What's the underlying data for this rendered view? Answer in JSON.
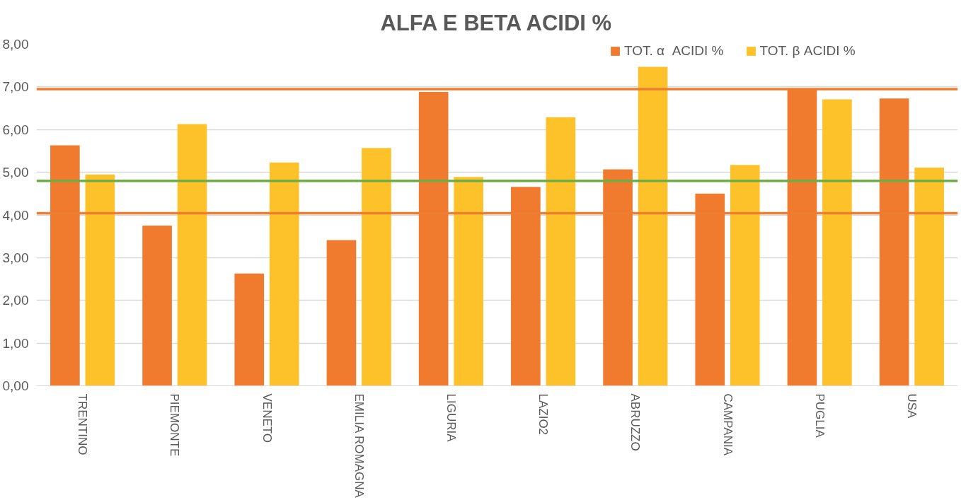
{
  "chart_data": {
    "type": "bar",
    "title": "ALFA E BETA ACIDI %",
    "categories": [
      "TRENTINO",
      "PIEMONTE",
      "VENETO",
      "EMILIA ROMAGNA",
      "LIGURIA",
      "LAZIO2",
      "ABRUZZO",
      "CAMPANIA",
      "PUGLIA",
      "USA"
    ],
    "series": [
      {
        "name": "TOT. α  ACIDI %",
        "color": "#f07b2e",
        "values": [
          5.63,
          3.75,
          2.63,
          3.41,
          6.88,
          4.66,
          5.07,
          4.5,
          6.96,
          6.73
        ]
      },
      {
        "name": "TOT. β ACIDI %",
        "color": "#fdc22a",
        "values": [
          4.95,
          6.13,
          5.23,
          5.57,
          4.89,
          6.29,
          7.47,
          5.17,
          6.71,
          5.11
        ]
      }
    ],
    "ylim": [
      0,
      8
    ],
    "yticks": [
      {
        "value": 0,
        "label": "0,00"
      },
      {
        "value": 1,
        "label": "1,00"
      },
      {
        "value": 2,
        "label": "2,00"
      },
      {
        "value": 3,
        "label": "3,00"
      },
      {
        "value": 4,
        "label": "4,00"
      },
      {
        "value": 5,
        "label": "5,00"
      },
      {
        "value": 6,
        "label": "6,00"
      },
      {
        "value": 7,
        "label": "7,00"
      },
      {
        "value": 8,
        "label": "8,00"
      }
    ],
    "ref_lines": [
      {
        "axis": "y",
        "value": 6.95,
        "label": null,
        "color": "#ed7d31"
      },
      {
        "axis": "y",
        "value": 4.04,
        "label": null,
        "color": "#ed7d31"
      },
      {
        "axis": "y",
        "value": 4.8,
        "label": null,
        "color": "#70ad47"
      }
    ],
    "grid": "y",
    "legend": "top right"
  }
}
